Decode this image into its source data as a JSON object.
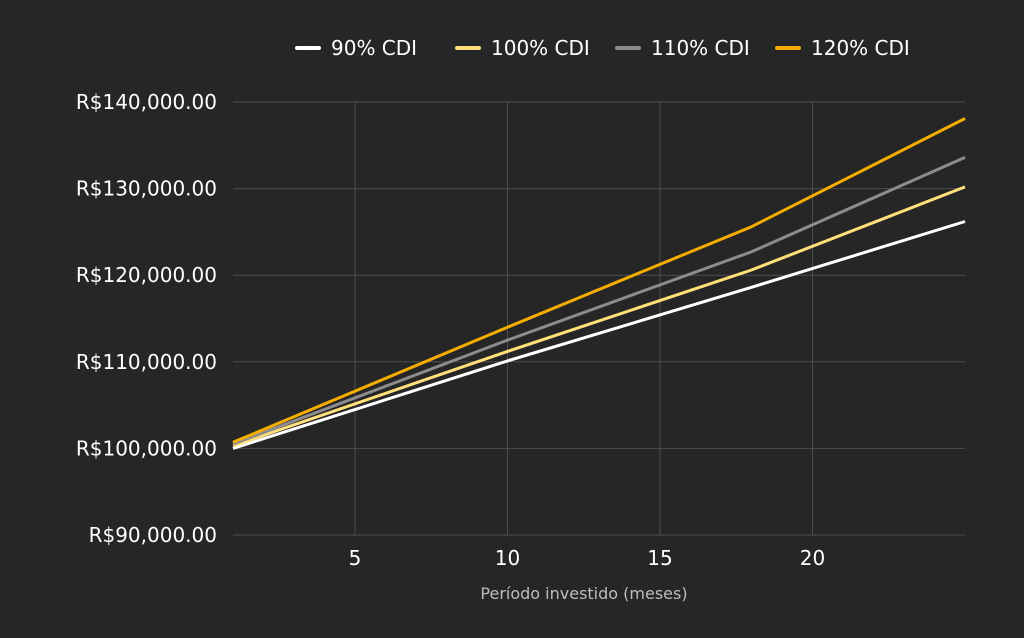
{
  "chart_data": {
    "type": "line",
    "title": "",
    "xlabel": "Período investido (meses)",
    "ylabel": "",
    "xlim": [
      1,
      25
    ],
    "ylim": [
      90000,
      140000
    ],
    "x_ticks": [
      5,
      10,
      15,
      20
    ],
    "y_ticks": [
      90000,
      100000,
      110000,
      120000,
      130000,
      140000
    ],
    "y_tick_labels": [
      "R$90,000.00",
      "R$100,000.00",
      "R$110,000.00",
      "R$120,000.00",
      "R$130,000.00",
      "R$140,000.00"
    ],
    "grid": true,
    "legend_position": "top",
    "series": [
      {
        "name": "90% CDI",
        "color": "#ffffff",
        "x": [
          1,
          10,
          18,
          25
        ],
        "y": [
          100000,
          110100,
          118600,
          126200
        ]
      },
      {
        "name": "100% CDI",
        "color": "#ffe07a",
        "x": [
          1,
          10,
          18,
          25
        ],
        "y": [
          100300,
          111200,
          120600,
          130200
        ]
      },
      {
        "name": "110% CDI",
        "color": "#8c8c8c",
        "x": [
          1,
          10,
          18,
          25
        ],
        "y": [
          100500,
          112500,
          122700,
          133600
        ]
      },
      {
        "name": "120% CDI",
        "color": "#f5ae00",
        "x": [
          1,
          10,
          18,
          25
        ],
        "y": [
          100700,
          114000,
          125600,
          138100
        ]
      }
    ]
  }
}
